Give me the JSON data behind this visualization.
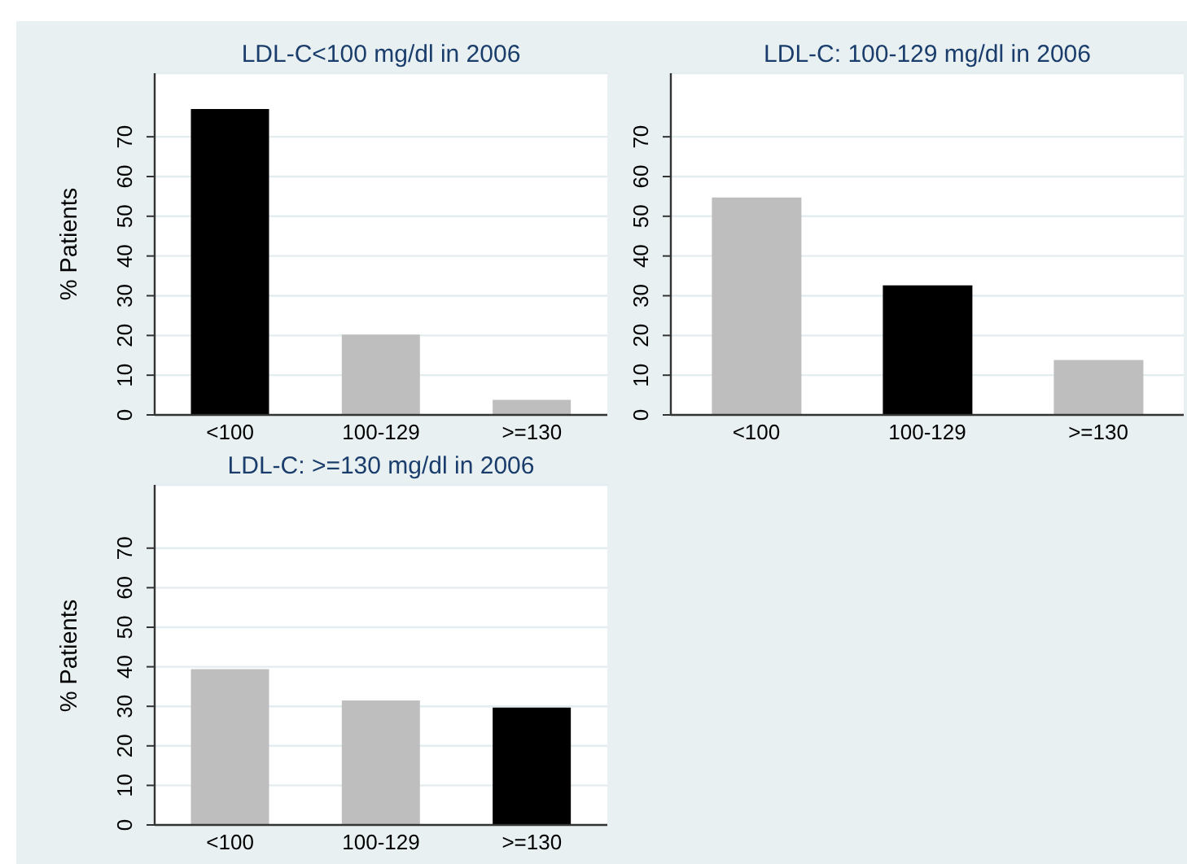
{
  "chart_data": [
    {
      "type": "bar",
      "title": "LDL-C<100 mg/dl in 2006",
      "ylabel": "% Patients",
      "categories": [
        "<100",
        "100-129",
        ">=130"
      ],
      "values": [
        77,
        20.2,
        3.8
      ],
      "colors": [
        "#000000",
        "#bebebe",
        "#bebebe"
      ],
      "ylim": [
        0,
        86
      ],
      "yticks": [
        0,
        10,
        20,
        30,
        40,
        50,
        60,
        70
      ],
      "grid": "y"
    },
    {
      "type": "bar",
      "title": "LDL-C: 100-129 mg/dl in 2006",
      "categories": [
        "<100",
        "100-129",
        ">=130"
      ],
      "values": [
        54.7,
        32.6,
        13.8
      ],
      "colors": [
        "#bebebe",
        "#000000",
        "#bebebe"
      ],
      "ylim": [
        0,
        86
      ],
      "yticks": [
        0,
        10,
        20,
        30,
        40,
        50,
        60,
        70
      ],
      "grid": "y"
    },
    {
      "type": "bar",
      "title": "LDL-C: >=130 mg/dl in 2006",
      "ylabel": "% Patients",
      "categories": [
        "<100",
        "100-129",
        ">=130"
      ],
      "values": [
        39.4,
        31.5,
        29.7
      ],
      "colors": [
        "#bebebe",
        "#bebebe",
        "#000000"
      ],
      "ylim": [
        0,
        86
      ],
      "yticks": [
        0,
        10,
        20,
        30,
        40,
        50,
        60,
        70
      ],
      "grid": "y"
    }
  ]
}
